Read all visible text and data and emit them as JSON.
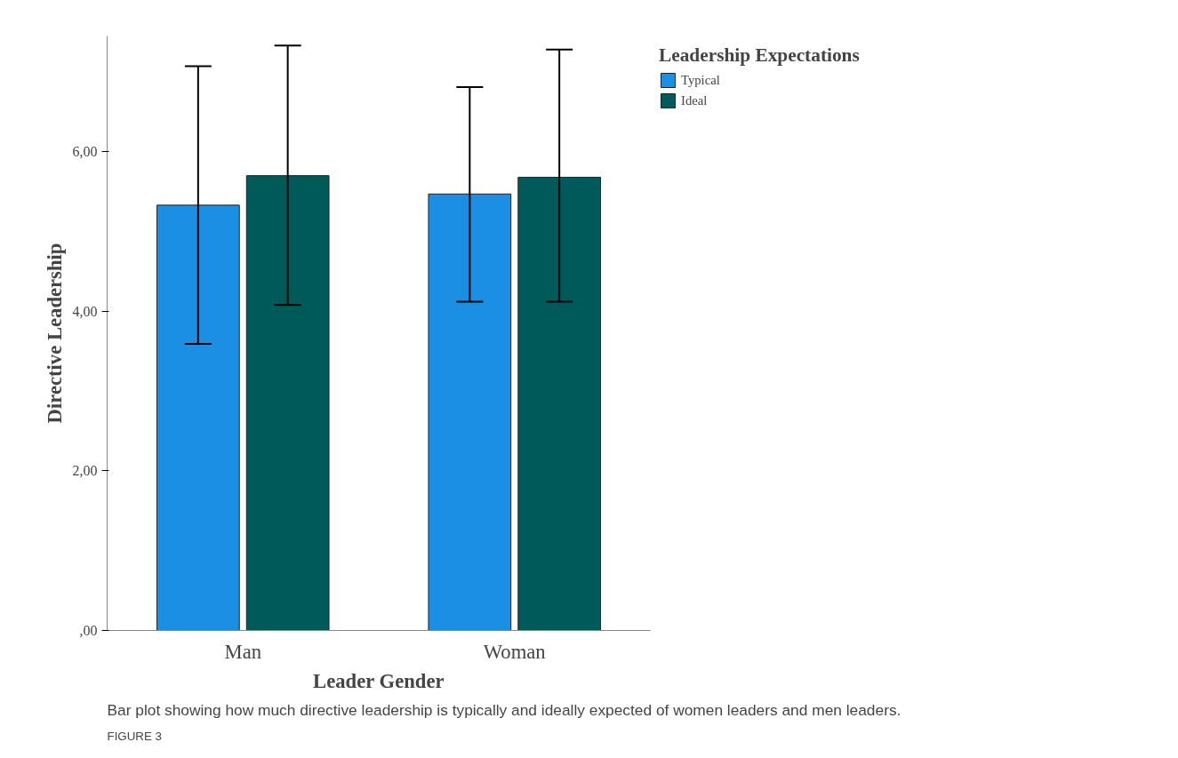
{
  "chart_data": {
    "type": "bar",
    "xlabel": "Leader Gender",
    "ylabel": "Directive Leadership",
    "legend_title": "Leadership Expectations",
    "categories": [
      "Man",
      "Woman"
    ],
    "series": [
      {
        "name": "Typical",
        "color": "#1a8fe3",
        "values": [
          5.33,
          5.47
        ],
        "errors": [
          [
            3.59,
            7.07
          ],
          [
            4.12,
            6.81
          ]
        ]
      },
      {
        "name": "Ideal",
        "color": "#005a5a",
        "values": [
          5.7,
          5.68
        ],
        "errors": [
          [
            4.08,
            7.33
          ],
          [
            4.12,
            7.28
          ]
        ]
      }
    ],
    "ylim": [
      0,
      7.45
    ],
    "yticks": [
      {
        "value": 0,
        "label": ",00"
      },
      {
        "value": 2,
        "label": "2,00"
      },
      {
        "value": 4,
        "label": "4,00"
      },
      {
        "value": 6,
        "label": "6,00"
      }
    ],
    "grid": false,
    "legend": "top right",
    "annotations": [
      "FIGURE 3",
      "Bar plot showing how much directive leadership is typically and ideally expected of women leaders and men leaders."
    ]
  }
}
